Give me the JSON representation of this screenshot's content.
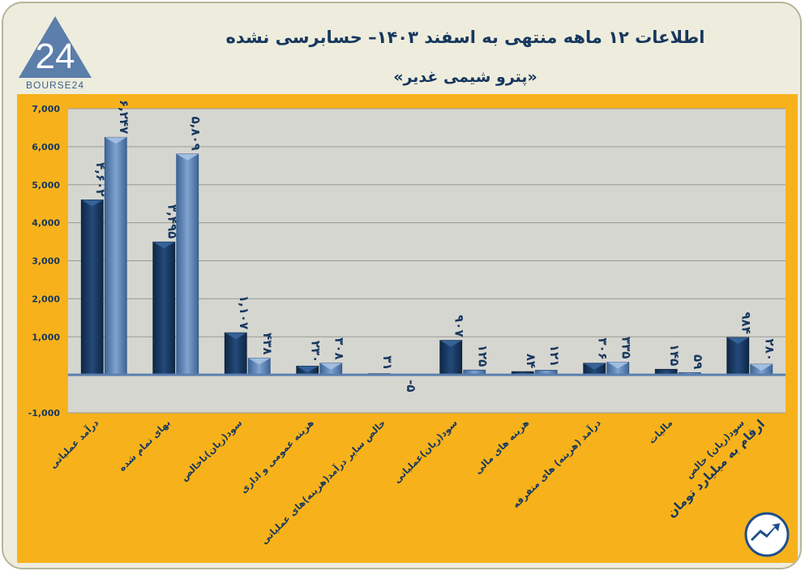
{
  "header": {
    "title": "اطلاعات ۱۲ ماهه منتهی به اسفند ۱۴۰۳– حسابرسی نشده",
    "subtitle": "«پترو شیمی غدیر»",
    "logo_text": "BOURSE24",
    "logo_number": "24"
  },
  "note": "ارقام به میلیارد تومان",
  "colors": {
    "background": "#eeeddd",
    "panel": "#f7b21b",
    "plot": "#d6d6d0",
    "series_dark": "#17375e",
    "series_light": "#4f7cb3",
    "text": "#17375e"
  },
  "chart_data": {
    "type": "bar",
    "title": "اطلاعات ۱۲ ماهه منتهی به اسفند ۱۴۰۳– حسابرسی نشده",
    "subtitle": "«پترو شیمی غدیر»",
    "categories": [
      "درآمد عملیاتی",
      "بهای تمام شده",
      "سود(زیان)ناخالص",
      "هزینه عمومی و اداری",
      "خالص سایر درآمد(هزینه)های عملیاتی",
      "سود(زیان)عملیاتی",
      "هزینه های مالی",
      "درآمد (هزینه) های متفرقه",
      "مالیات",
      "سود(زیان) خالص"
    ],
    "series": [
      {
        "values": [
          4602,
          3495,
          1107,
          230,
          31,
          907,
          84,
          306,
          145,
          984
        ],
        "labels": [
          "۴,۶۰۲",
          "۳,۴۹۵",
          "۱,۱۰۷",
          "۲۳۰",
          "۳۱",
          "۹۰۷",
          "۸۴",
          "۳۰۶",
          "۱۴۵",
          "۹۸۴"
        ]
      },
      {
        "values": [
          6247,
          5809,
          438,
          308,
          -5,
          125,
          121,
          335,
          59,
          280
        ],
        "labels": [
          "۶,۲۴۷",
          "۵,۸۰۹",
          "۴۳۸",
          "۳۰۸",
          "-۵",
          "۱۲۵",
          "۱۲۱",
          "۳۳۵",
          "۵۹",
          "۲۸۰"
        ]
      }
    ],
    "yticks": [
      -1000,
      0,
      1000,
      2000,
      3000,
      4000,
      5000,
      6000,
      7000
    ],
    "ytick_labels": [
      "-1,000",
      "",
      "1,000",
      "2,000",
      "3,000",
      "4,000",
      "5,000",
      "6,000",
      "7,000"
    ],
    "ylim": [
      -1000,
      7000
    ],
    "grid": true,
    "legend": "none"
  }
}
